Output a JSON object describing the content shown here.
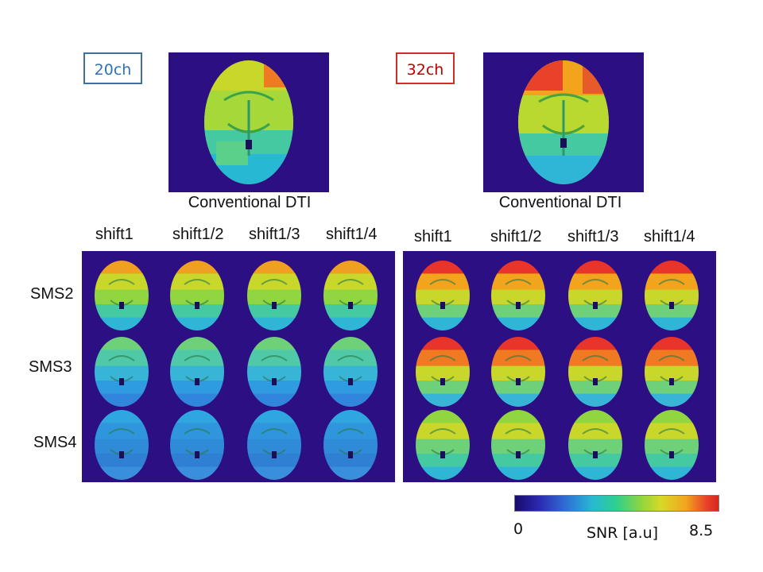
{
  "left": {
    "coil_label": "20ch",
    "conventional_label": "Conventional DTI",
    "columns": [
      "shift1",
      "shift1/2",
      "shift1/3",
      "shift1/4"
    ],
    "rows": [
      "SMS2",
      "SMS3",
      "SMS4"
    ]
  },
  "right": {
    "coil_label": "32ch",
    "conventional_label": "Conventional DTI",
    "columns": [
      "shift1",
      "shift1/2",
      "shift1/3",
      "shift1/4"
    ]
  },
  "colorbar": {
    "min_label": "0",
    "max_label": "8.5",
    "title": "SNR [a.u]"
  },
  "colors": {
    "tag_20ch": "#2e75b6",
    "tag_32ch": "#c00000",
    "background_map": "#2c0f82"
  }
}
